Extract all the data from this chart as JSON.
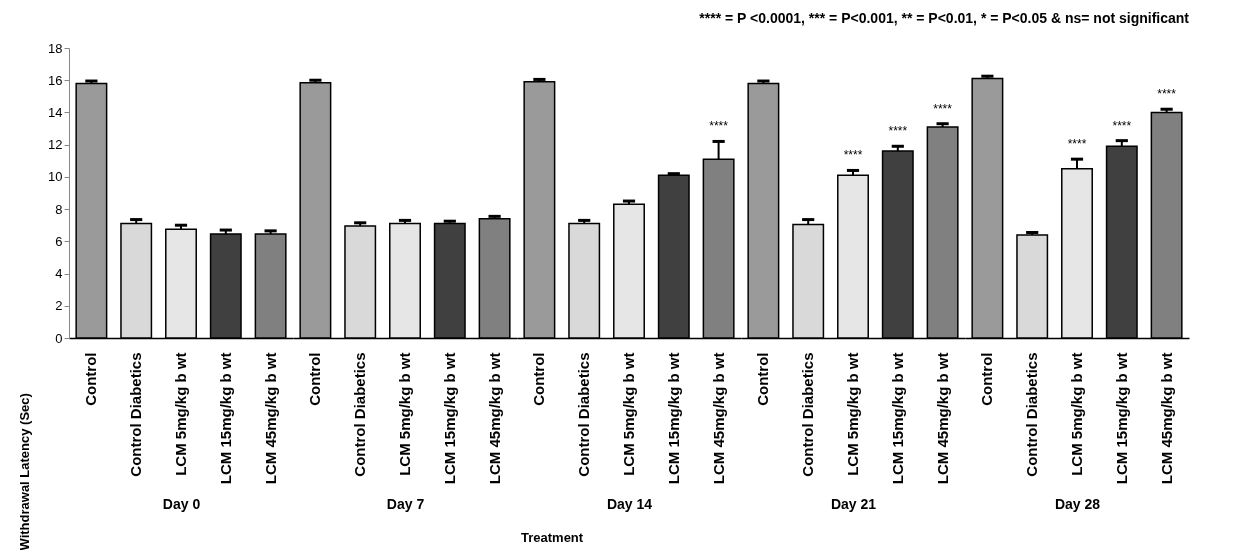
{
  "chart_data": [
    {
      "type": "bar",
      "xlabel": "Day 0",
      "ylabel": "Withdrawal Latency (Sec)",
      "categories": [
        "Control",
        "Control Diabetics",
        "LCM 5mg/kg b wt",
        "LCM 15mg/kg b wt",
        "LCM 45mg/kg b wt"
      ],
      "values": [
        15.8,
        7.1,
        6.75,
        6.45,
        6.45
      ],
      "errors": [
        0.15,
        0.25,
        0.25,
        0.25,
        0.2
      ],
      "colors": [
        "#9a9a9a",
        "#d9d9d9",
        "#e6e6e6",
        "#404040",
        "#808080"
      ],
      "ylim": [
        0,
        18
      ],
      "yticks": [
        0,
        2,
        4,
        6,
        8,
        10,
        12,
        14,
        16,
        18
      ],
      "grid": false
    },
    {
      "type": "bar",
      "xlabel": "Day 7",
      "categories": [
        "Control",
        "Control Diabetics",
        "LCM 5mg/kg b wt",
        "LCM 15mg/kg b wt",
        "LCM 45mg/kg b wt"
      ],
      "values": [
        15.85,
        6.95,
        7.1,
        7.1,
        7.4
      ],
      "errors": [
        0.15,
        0.2,
        0.2,
        0.15,
        0.15
      ],
      "colors": [
        "#9a9a9a",
        "#d9d9d9",
        "#e6e6e6",
        "#404040",
        "#808080"
      ],
      "ylim": [
        0,
        18
      ],
      "tick_labels": "x",
      "grid": false
    },
    {
      "type": "bar",
      "xlabel": "Day 14",
      "categories": [
        "Control",
        "Control Diabetics",
        "LCM 5mg/kg b wt",
        "LCM 15mg/kg b wt",
        "LCM 45mg/kg b wt"
      ],
      "values": [
        15.9,
        7.1,
        8.3,
        10.1,
        11.1
      ],
      "errors": [
        0.15,
        0.2,
        0.2,
        0.1,
        1.1
      ],
      "colors": [
        "#9a9a9a",
        "#d9d9d9",
        "#e6e6e6",
        "#404040",
        "#808080"
      ],
      "ylim": [
        0,
        18
      ],
      "tick_labels": "x",
      "grid": false,
      "value_labels": [
        null,
        null,
        null,
        null,
        "****"
      ],
      "annotations": [
        "Treatment"
      ]
    },
    {
      "type": "bar",
      "xlabel": "Day 21",
      "categories": [
        "Control",
        "Control Diabetics",
        "LCM 5mg/kg b wt",
        "LCM 15mg/kg b wt",
        "LCM 45mg/kg b wt"
      ],
      "values": [
        15.8,
        7.05,
        10.1,
        11.6,
        13.1
      ],
      "errors": [
        0.15,
        0.3,
        0.3,
        0.3,
        0.2
      ],
      "colors": [
        "#9a9a9a",
        "#d9d9d9",
        "#e6e6e6",
        "#404040",
        "#808080"
      ],
      "ylim": [
        0,
        18
      ],
      "tick_labels": "x",
      "grid": false,
      "value_labels": [
        null,
        null,
        "****",
        "****",
        "****"
      ]
    },
    {
      "type": "bar",
      "xlabel": "Day 28",
      "categories": [
        "Control",
        "Control Diabetics",
        "LCM 5mg/kg b wt",
        "LCM 15mg/kg b wt",
        "LCM 45mg/kg b wt"
      ],
      "values": [
        16.1,
        6.4,
        10.5,
        11.9,
        14.0
      ],
      "errors": [
        0.15,
        0.15,
        0.6,
        0.35,
        0.2
      ],
      "colors": [
        "#9a9a9a",
        "#d9d9d9",
        "#e6e6e6",
        "#404040",
        "#808080"
      ],
      "ylim": [
        0,
        18
      ],
      "tick_labels": "x",
      "grid": false,
      "value_labels": [
        null,
        null,
        "****",
        "****",
        "****"
      ],
      "annotations": [
        "**** = P <0.0001, *** = P<0.001,  ** = P<0.01, * =  P<0.05 & ns= not significant"
      ]
    }
  ]
}
